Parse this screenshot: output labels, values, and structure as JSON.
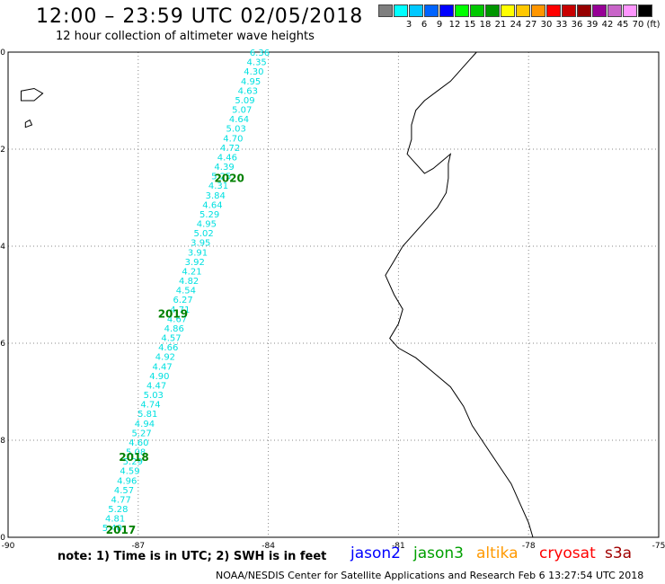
{
  "header": {
    "title": "12:00 – 23:59 UTC 02/05/2018",
    "subtitle": "12 hour collection of altimeter wave heights"
  },
  "legend": {
    "unit": "(ft)",
    "items": [
      {
        "label": "",
        "color": "#7f7f7f"
      },
      {
        "label": "3",
        "color": "#00ffff"
      },
      {
        "label": "6",
        "color": "#00c8ff"
      },
      {
        "label": "9",
        "color": "#0064ff"
      },
      {
        "label": "12",
        "color": "#0000ff"
      },
      {
        "label": "15",
        "color": "#00ff00"
      },
      {
        "label": "18",
        "color": "#00c800"
      },
      {
        "label": "21",
        "color": "#009600"
      },
      {
        "label": "24",
        "color": "#ffff00"
      },
      {
        "label": "27",
        "color": "#ffc800"
      },
      {
        "label": "30",
        "color": "#ff9600"
      },
      {
        "label": "33",
        "color": "#ff0000"
      },
      {
        "label": "36",
        "color": "#c80000"
      },
      {
        "label": "39",
        "color": "#960000"
      },
      {
        "label": "42",
        "color": "#960096"
      },
      {
        "label": "45",
        "color": "#c864c8"
      },
      {
        "label": "70",
        "color": "#ff96ff"
      },
      {
        "label": "(ft)",
        "color": "#000000"
      }
    ]
  },
  "map": {
    "lon_range": [
      -90,
      -75
    ],
    "lat_range": [
      -10,
      0
    ],
    "x_ticks": [
      "-90",
      "-87",
      "-84",
      "-81",
      "-78",
      "-75"
    ],
    "y_ticks": [
      "0",
      "-2",
      "-4",
      "-6",
      "-8",
      "-10"
    ],
    "colors": {
      "frame": "#000000",
      "coast": "#000000",
      "grid": "#888888",
      "swh": "#00e0e0",
      "time": "#008000"
    },
    "track": {
      "start": {
        "lon": -84.2,
        "lat": 0.0
      },
      "end": {
        "lon": -87.6,
        "lat": -9.8
      },
      "values": [
        "6.36",
        "4.35",
        "4.30",
        "4.95",
        "4.63",
        "5.09",
        "5.07",
        "4.64",
        "5.03",
        "4.70",
        "4.72",
        "4.46",
        "4.39",
        "5.25",
        "4.31",
        "3.84",
        "4.64",
        "5.29",
        "4.95",
        "5.02",
        "3.95",
        "3.91",
        "3.92",
        "4.21",
        "4.82",
        "4.54",
        "6.27",
        "4.71",
        "4.67",
        "4.86",
        "4.57",
        "4.66",
        "4.92",
        "4.47",
        "4.90",
        "4.47",
        "5.03",
        "4.74",
        "5.81",
        "4.94",
        "5.27",
        "4.60",
        "5.08",
        "5.29",
        "4.59",
        "4.96",
        "4.57",
        "4.77",
        "5.28",
        "4.81",
        "5.40"
      ]
    },
    "times": [
      {
        "label": "2020",
        "lon": -84.9,
        "lat": -2.6
      },
      {
        "label": "2019",
        "lon": -86.2,
        "lat": -5.4
      },
      {
        "label": "2018",
        "lon": -87.1,
        "lat": -8.35
      },
      {
        "label": "2017",
        "lon": -87.4,
        "lat": -9.85
      }
    ],
    "coastline": [
      [
        -79.2,
        0.0
      ],
      [
        -79.4,
        -0.2
      ],
      [
        -79.6,
        -0.4
      ],
      [
        -79.8,
        -0.6
      ],
      [
        -80.1,
        -0.8
      ],
      [
        -80.4,
        -1.0
      ],
      [
        -80.6,
        -1.2
      ],
      [
        -80.7,
        -1.5
      ],
      [
        -80.7,
        -1.8
      ],
      [
        -80.8,
        -2.1
      ],
      [
        -80.6,
        -2.3
      ],
      [
        -80.4,
        -2.5
      ],
      [
        -80.2,
        -2.4
      ],
      [
        -80.0,
        -2.25
      ],
      [
        -79.8,
        -2.1
      ],
      [
        -79.85,
        -2.3
      ],
      [
        -79.85,
        -2.6
      ],
      [
        -79.9,
        -2.9
      ],
      [
        -80.1,
        -3.2
      ],
      [
        -80.3,
        -3.4
      ],
      [
        -80.5,
        -3.6
      ],
      [
        -80.7,
        -3.8
      ],
      [
        -80.9,
        -4.0
      ],
      [
        -81.1,
        -4.3
      ],
      [
        -81.3,
        -4.6
      ],
      [
        -81.1,
        -5.0
      ],
      [
        -80.9,
        -5.3
      ],
      [
        -81.0,
        -5.6
      ],
      [
        -81.2,
        -5.9
      ],
      [
        -81.0,
        -6.1
      ],
      [
        -80.6,
        -6.3
      ],
      [
        -80.2,
        -6.6
      ],
      [
        -79.8,
        -6.9
      ],
      [
        -79.5,
        -7.3
      ],
      [
        -79.3,
        -7.7
      ],
      [
        -79.0,
        -8.1
      ],
      [
        -78.7,
        -8.5
      ],
      [
        -78.4,
        -8.9
      ],
      [
        -78.2,
        -9.3
      ],
      [
        -78.0,
        -9.7
      ],
      [
        -77.9,
        -10.0
      ]
    ],
    "islands": [
      [
        [
          -89.7,
          -0.8
        ],
        [
          -89.4,
          -0.75
        ],
        [
          -89.2,
          -0.85
        ],
        [
          -89.4,
          -1.0
        ],
        [
          -89.7,
          -1.0
        ]
      ],
      [
        [
          -89.6,
          -1.45
        ],
        [
          -89.5,
          -1.4
        ],
        [
          -89.45,
          -1.5
        ],
        [
          -89.6,
          -1.55
        ]
      ]
    ]
  },
  "footer": {
    "note": "note: 1) Time is in UTC; 2) SWH is in feet",
    "satellites": [
      {
        "label": "jason2",
        "color": "#0000ff"
      },
      {
        "label": "jason3",
        "color": "#00a000"
      },
      {
        "label": "altika",
        "color": "#ff9900"
      },
      {
        "label": "cryosat",
        "color": "#ff0000"
      },
      {
        "label": "s3a",
        "color": "#a00000"
      }
    ],
    "credit": "NOAA/NESDIS Center for Satellite Applications and Research    Feb  6 13:27:54 UTC 2018"
  }
}
